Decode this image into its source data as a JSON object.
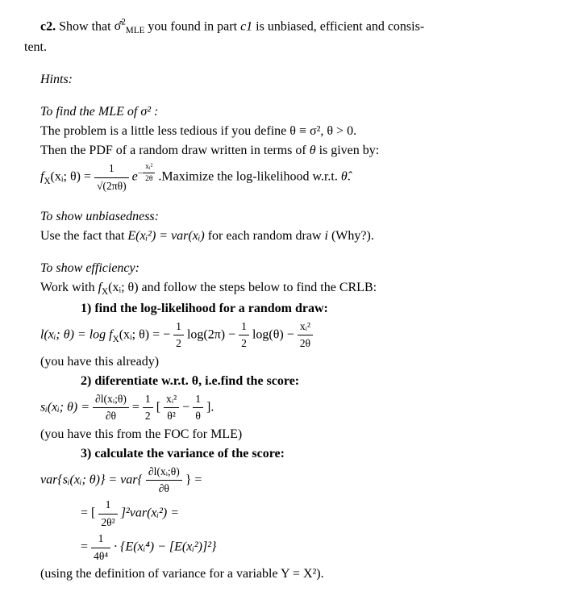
{
  "colors": {
    "text": "#000000",
    "bg": "#ffffff"
  },
  "typography": {
    "font": "Times New Roman",
    "size_pt": 12
  },
  "c2": {
    "label": "c2.",
    "text_before": " Show that ",
    "sigma_hat": "σ̂",
    "sigma_exp": "2",
    "sigma_sub": "MLE",
    "text_after_1": " you found in part ",
    "part_ref": "c1",
    "text_after_2": " is unbiased, efficient and consis-",
    "tent": "tent."
  },
  "hints_label": "Hints:",
  "mle": {
    "heading": "To find the MLE of σ² :",
    "line1_a": "The problem is a little less tedious if you define ",
    "line1_b": "θ ≡ σ², θ > 0.",
    "line2_a": "Then the PDF of a random draw written in terms of ",
    "line2_b": "θ",
    "line2_c": " is given by:",
    "pdf_lhs": "f",
    "pdf_sub": "X",
    "pdf_args": "(xᵢ; θ) = ",
    "frac_num": "1",
    "frac_den": "√(2πθ)",
    "exp_label": "e",
    "exp_neg": "−",
    "exp_frac_num": "xᵢ²",
    "exp_frac_den": "2θ",
    "maximize": ".Maximize the log-likelihood w.r.t. ",
    "theta_hat": "θ̂",
    "period": "."
  },
  "unbiased": {
    "heading": "To show unbiasedness:",
    "text_a": "Use the fact that ",
    "eq": "E(xᵢ²) = var(xᵢ)",
    "text_b": " for each random draw ",
    "i": "i",
    "why": " (Why?)."
  },
  "eff": {
    "heading": "To show efficiency:",
    "intro_a": "Work with ",
    "intro_b": "f",
    "intro_sub": "X",
    "intro_c": "(xᵢ; θ)",
    "intro_d": " and follow the steps below to find the CRLB:",
    "step1_label": "1) find the log-likelihood for a random draw:",
    "ll_eq_a": "l(xᵢ; θ) = log f",
    "ll_sub": "X",
    "ll_eq_b": "(xᵢ; θ) = −",
    "half1_num": "1",
    "half1_den": "2",
    "ll_log2pi": " log(2π) − ",
    "half2_num": "1",
    "half2_den": "2",
    "ll_logtheta": " log(θ) − ",
    "ll_frac_num": "xᵢ²",
    "ll_frac_den": "2θ",
    "already": "(you have this already)",
    "step2_label": "2) diferentiate w.r.t. θ, i.e.find the score:",
    "score_lhs": "sᵢ(xᵢ; θ) = ",
    "score_d_num": "∂l(xᵢ;θ)",
    "score_d_den": "∂θ",
    "score_eq": "=",
    "score_half_num": "1",
    "score_half_den": "2",
    "score_bracket_open": "[",
    "score_t1_num": "xᵢ²",
    "score_t1_den": "θ²",
    "score_minus": " − ",
    "score_t2_num": "1",
    "score_t2_den": "θ",
    "score_bracket_close": "].",
    "foc_note": "(you have this from the FOC for MLE)",
    "step3_label": "3) calculate the variance of the score:",
    "var_line1_a": "var{sᵢ(xᵢ; θ)} = var{",
    "var_d_num": "∂l(xᵢ;θ)",
    "var_d_den": "∂θ",
    "var_line1_b": "} =",
    "var_line2_a": "= [",
    "var_c_num": "1",
    "var_c_den": "2θ²",
    "var_line2_b": "]²var(xᵢ²) =",
    "var_line3_a": "= ",
    "var_c2_num": "1",
    "var_c2_den": "4θ⁴",
    "var_line3_b": " · {E(xᵢ⁴) − [E(xᵢ²)]²}",
    "var_def": "(using the definition of variance for a variable Y = X²)."
  }
}
